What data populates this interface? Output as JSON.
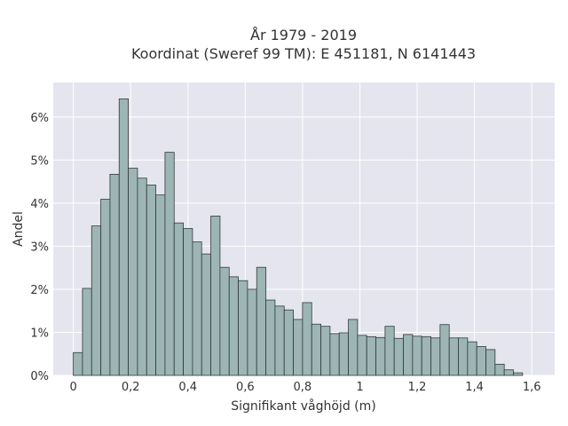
{
  "chart_data": {
    "type": "bar",
    "title": "År 1979 - 2019",
    "subtitle": "Koordinat (Sweref 99 TM): E 451181, N 6141443",
    "xlabel": "Signifikant våghöjd (m)",
    "ylabel": "Andel",
    "xlim": [
      -0.07,
      1.68
    ],
    "ylim": [
      0,
      6.8
    ],
    "x_ticks": [
      0,
      0.2,
      0.4,
      0.6,
      0.8,
      1,
      1.2,
      1.4,
      1.6
    ],
    "x_tick_labels": [
      "0",
      "0,2",
      "0,4",
      "0,6",
      "0,8",
      "1",
      "1,2",
      "1,4",
      "1,6"
    ],
    "y_ticks": [
      0,
      1,
      2,
      3,
      4,
      5,
      6
    ],
    "y_tick_labels": [
      "0%",
      "1%",
      "2%",
      "3%",
      "4%",
      "5%",
      "6%"
    ],
    "bin_width": 0.032,
    "bin_start": 0,
    "values": [
      0.53,
      2.02,
      3.47,
      4.09,
      4.67,
      6.42,
      4.81,
      4.58,
      4.42,
      4.19,
      5.18,
      3.54,
      3.41,
      3.1,
      2.82,
      3.7,
      2.51,
      2.29,
      2.2,
      2.0,
      2.51,
      1.75,
      1.61,
      1.52,
      1.3,
      1.69,
      1.19,
      1.14,
      0.97,
      0.99,
      1.3,
      0.93,
      0.9,
      0.88,
      1.14,
      0.86,
      0.95,
      0.91,
      0.9,
      0.87,
      1.18,
      0.87,
      0.87,
      0.78,
      0.67,
      0.6,
      0.26,
      0.13,
      0.06
    ],
    "grid": true,
    "legend": "none",
    "colors": {
      "bar_fill": "#9db5b4",
      "bar_stroke": "#2f3b3b",
      "plot_bg": "#e5e5ef",
      "grid": "#ffffff"
    }
  }
}
